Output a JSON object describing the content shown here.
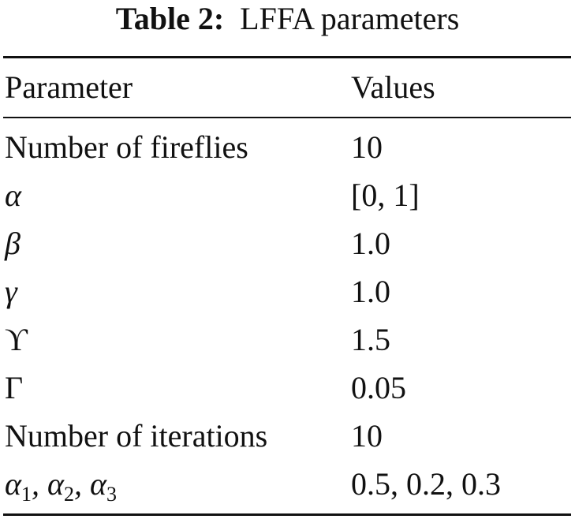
{
  "caption": {
    "label": "Table 2:",
    "text": "LFFA parameters"
  },
  "table": {
    "headers": [
      "Parameter",
      "Values"
    ],
    "rows": [
      {
        "parameter": "Number of fireflies",
        "value": "10"
      },
      {
        "parameter": "α",
        "value": "[0, 1]"
      },
      {
        "parameter": "β",
        "value": "1.0"
      },
      {
        "parameter": "γ",
        "value": "1.0"
      },
      {
        "parameter": "ϒ",
        "value": "1.5"
      },
      {
        "parameter": "Γ",
        "value": "0.05"
      },
      {
        "parameter": "Number of iterations",
        "value": "10"
      },
      {
        "parameter": "α1, α2, α3",
        "value": "0.5, 0.2, 0.3"
      }
    ]
  }
}
